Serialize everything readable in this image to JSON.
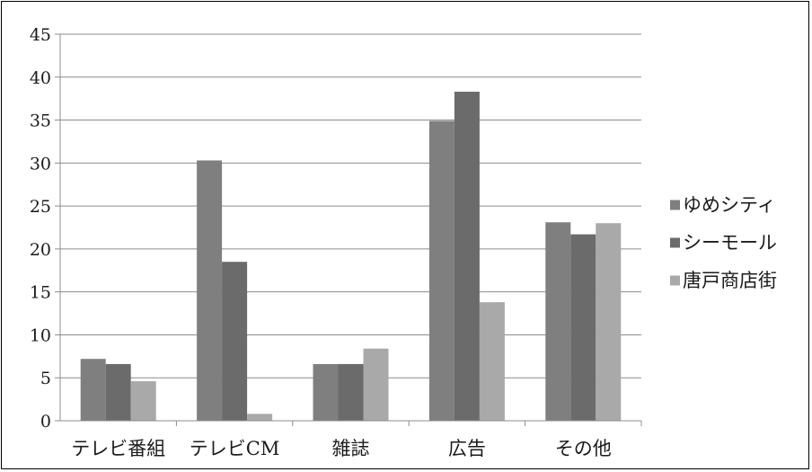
{
  "chart_data": {
    "type": "bar",
    "categories": [
      "テレビ番組",
      "テレビCM",
      "雑誌",
      "広告",
      "その他"
    ],
    "series": [
      {
        "name": "ゆめシティ",
        "color": "#7f7f7f",
        "values": [
          7.2,
          30.3,
          6.6,
          34.9,
          23.1
        ]
      },
      {
        "name": "シーモール",
        "color": "#6b6b6b",
        "values": [
          6.6,
          18.5,
          6.6,
          38.3,
          21.7
        ]
      },
      {
        "name": "唐戸商店街",
        "color": "#a9a9a9",
        "values": [
          4.6,
          0.8,
          8.4,
          13.8,
          23.0
        ]
      }
    ],
    "ylim": [
      0,
      45
    ],
    "yticks": [
      0,
      5,
      10,
      15,
      20,
      25,
      30,
      35,
      40,
      45
    ],
    "grid": true,
    "legend": "right"
  }
}
